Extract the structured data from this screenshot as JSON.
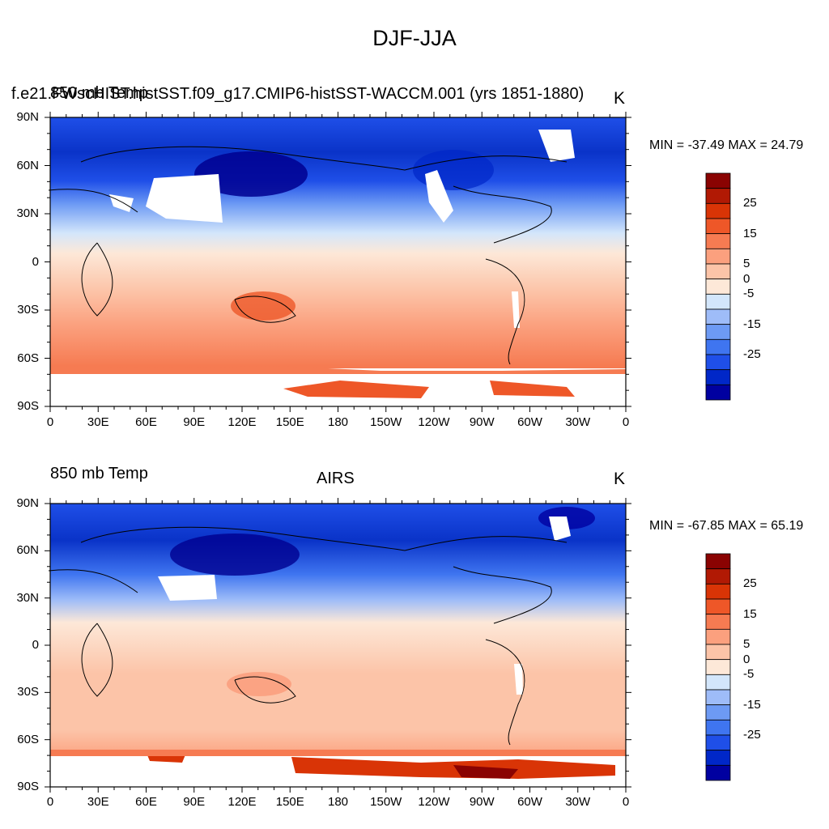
{
  "title": "DJF-JJA",
  "lon_labels": [
    "0",
    "30E",
    "60E",
    "90E",
    "120E",
    "150E",
    "180",
    "150W",
    "120W",
    "90W",
    "60W",
    "30W",
    "0"
  ],
  "lat_labels": [
    "90N",
    "60N",
    "30N",
    "0",
    "30S",
    "60S",
    "90S"
  ],
  "colorbar": {
    "labels": [
      "25",
      "15",
      "5",
      "0",
      "-5",
      "-15",
      "-25"
    ],
    "colors": [
      "#0000a0",
      "#0027c8",
      "#1f4fe8",
      "#3f75f0",
      "#6d9af4",
      "#9ebcf8",
      "#d3e6fb",
      "#fde8d8",
      "#fcc4a8",
      "#fba07e",
      "#f67b52",
      "#ee5728",
      "#d93406",
      "#b11904",
      "#8a0302"
    ]
  },
  "panels": [
    {
      "left_title": "850 mb Temp",
      "overlap_title": "f.e21.FWscHIST.histSST.f09_g17.CMIP6-histSST-WACCM.001 (yrs 1851-1880)",
      "center_title": "",
      "units": "K",
      "minmax": "MIN = -37.49 MAX =  24.79"
    },
    {
      "left_title": "850 mb Temp",
      "overlap_title": "",
      "center_title": "AIRS",
      "units": "K",
      "minmax": "MIN = -67.85 MAX =  65.19"
    }
  ]
}
